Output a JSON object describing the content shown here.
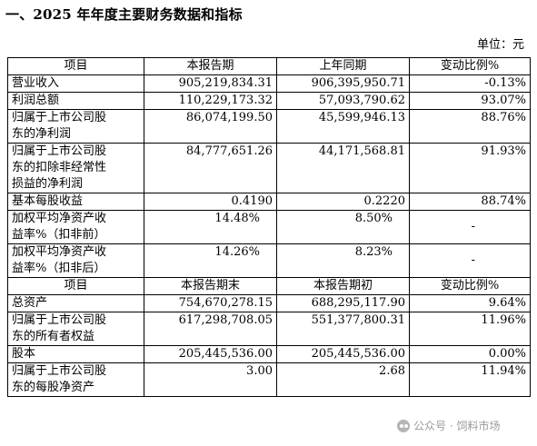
{
  "heading": "一、2025 年年度主要财务数据和指标",
  "unit": "单位：元",
  "section1": {
    "headers": [
      "项目",
      "本报告期",
      "上年同期",
      "变动比例%"
    ],
    "rows": [
      {
        "label": [
          "营业收入"
        ],
        "current": "905,219,834.31",
        "previous": "906,395,950.71",
        "change": "-0.13%"
      },
      {
        "label": [
          "利润总额"
        ],
        "current": "110,229,173.32",
        "previous": "57,093,790.62",
        "change": "93.07%"
      },
      {
        "label": [
          "归属于上市公司股",
          "东的净利润"
        ],
        "current": "86,074,199.50",
        "previous": "45,599,946.13",
        "change": "88.76%"
      },
      {
        "label": [
          "归属于上市公司股",
          "东的扣除非经常性",
          "损益的净利润"
        ],
        "current": "84,777,651.26",
        "previous": "44,171,568.81",
        "change": "91.93%"
      },
      {
        "label": [
          "基本每股收益"
        ],
        "current": "0.4190",
        "previous": "0.2220",
        "change": "88.74%"
      },
      {
        "label": [
          "加权平均净资产收",
          "益率%（扣非前）"
        ],
        "current": "14.48%",
        "previous": "8.50%",
        "change": "-"
      },
      {
        "label": [
          "加权平均净资产收",
          "益率%（扣非后）"
        ],
        "current": "14.26%",
        "previous": "8.23%",
        "change": "-"
      }
    ]
  },
  "section2": {
    "headers": [
      "项目",
      "本报告期末",
      "本报告期初",
      "变动比例%"
    ],
    "rows": [
      {
        "label": [
          "总资产"
        ],
        "current": "754,670,278.15",
        "previous": "688,295,117.90",
        "change": "9.64%"
      },
      {
        "label": [
          "归属于上市公司股",
          "东的所有者权益"
        ],
        "current": "617,298,708.05",
        "previous": "551,377,800.31",
        "change": "11.96%"
      },
      {
        "label": [
          "股本"
        ],
        "current": "205,445,536.00",
        "previous": "205,445,536.00",
        "change": "0.00%"
      },
      {
        "label": [
          "归属于上市公司股",
          "东的每股净资产"
        ],
        "current": "3.00",
        "previous": "2.68",
        "change": "11.94%"
      }
    ]
  },
  "watermark": "公众号 · 饲料市场"
}
